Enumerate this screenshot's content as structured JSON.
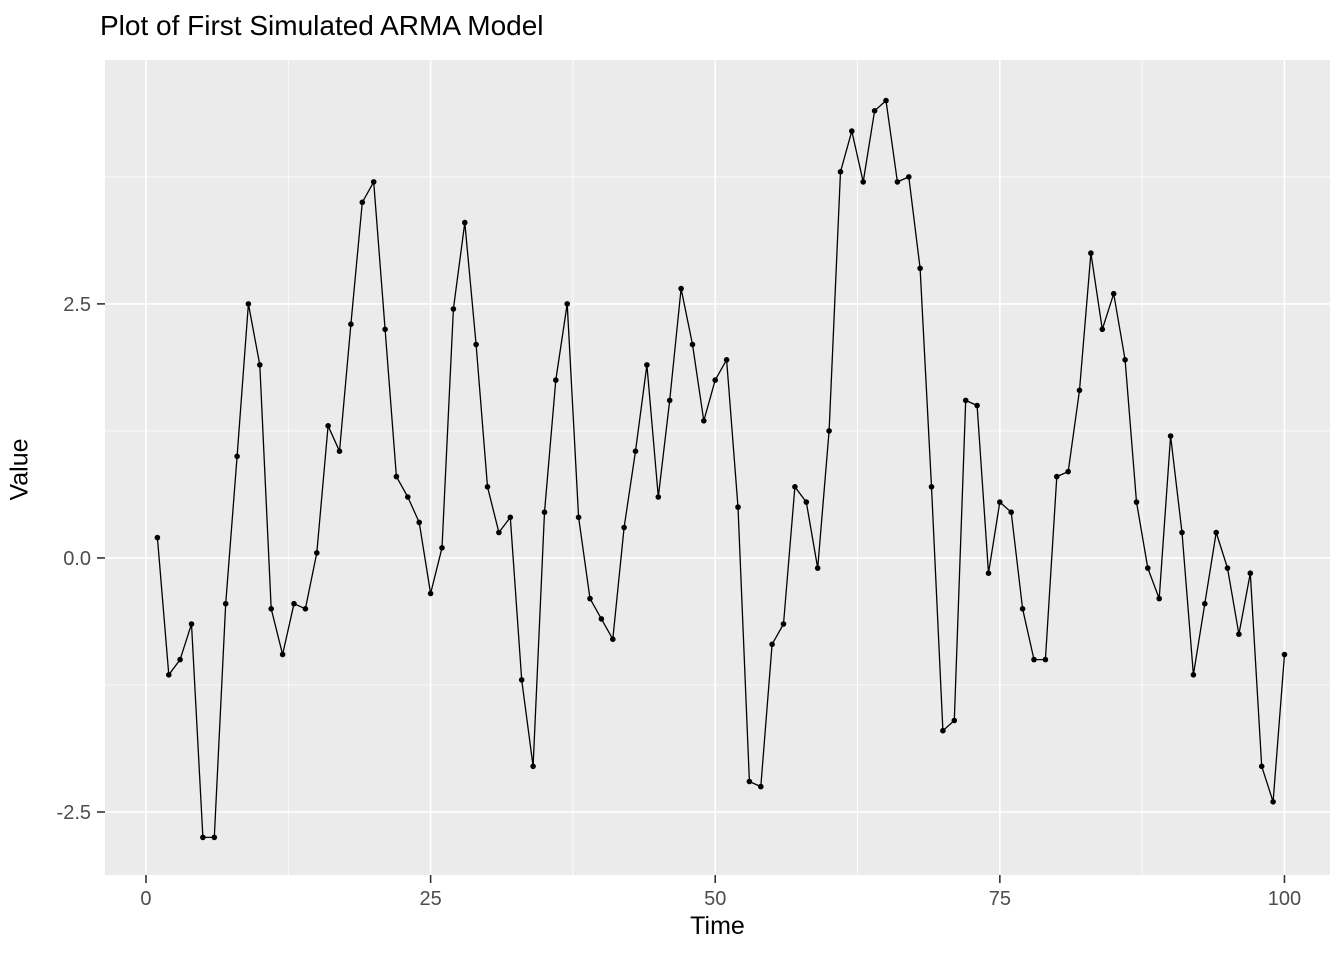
{
  "chart_data": {
    "type": "line",
    "title": "Plot of First Simulated ARMA Model",
    "xlabel": "Time",
    "ylabel": "Value",
    "x_start": 1,
    "values": [
      0.2,
      -1.15,
      -1.0,
      -0.65,
      -2.75,
      -2.75,
      -0.45,
      1.0,
      2.5,
      1.9,
      -0.5,
      -0.95,
      -0.45,
      -0.5,
      0.05,
      1.3,
      1.05,
      2.3,
      3.5,
      3.7,
      2.25,
      0.8,
      0.6,
      0.35,
      -0.35,
      0.1,
      2.45,
      3.3,
      2.1,
      0.7,
      0.25,
      0.4,
      -1.2,
      -2.05,
      0.45,
      1.75,
      2.5,
      0.4,
      -0.4,
      -0.6,
      -0.8,
      0.3,
      1.05,
      1.9,
      0.6,
      1.55,
      2.65,
      2.1,
      1.35,
      1.75,
      1.95,
      0.5,
      -2.2,
      -2.25,
      -0.85,
      -0.65,
      0.7,
      0.55,
      -0.1,
      1.25,
      3.8,
      4.2,
      3.7,
      4.4,
      4.5,
      3.7,
      3.75,
      2.85,
      0.7,
      -1.7,
      -1.6,
      1.55,
      1.5,
      -0.15,
      0.55,
      0.45,
      -0.5,
      -1.0,
      -1.0,
      0.8,
      0.85,
      1.65,
      3.0,
      2.25,
      2.6,
      1.95,
      0.55,
      -0.1,
      -0.4,
      1.2,
      0.25,
      -1.15,
      -0.45,
      0.25,
      -0.1,
      -0.75,
      -0.15,
      -2.05,
      -2.4,
      -0.95
    ],
    "x_ticks": {
      "values": [
        0,
        25,
        50,
        75,
        100
      ],
      "labels": [
        "0",
        "25",
        "50",
        "75",
        "100"
      ]
    },
    "y_ticks": {
      "values": [
        2.5,
        0.0,
        -2.5
      ],
      "labels": [
        "2.5",
        "0.0",
        "-2.5"
      ]
    },
    "x_minor": [
      12.5,
      37.5,
      62.5,
      87.5
    ],
    "y_minor": [
      3.75,
      1.25,
      -1.25
    ],
    "xlim": [
      -3.6,
      104.0
    ],
    "ylim": [
      -3.12,
      4.9
    ],
    "grid": true,
    "legend": "none",
    "marker": "point",
    "colors": {
      "panel_bg": "#EBEBEB",
      "grid": "#FFFFFF",
      "line": "#000000",
      "point": "#000000",
      "tick_mark": "#333333",
      "tick_label": "#4D4D4D",
      "title": "#000000"
    }
  }
}
